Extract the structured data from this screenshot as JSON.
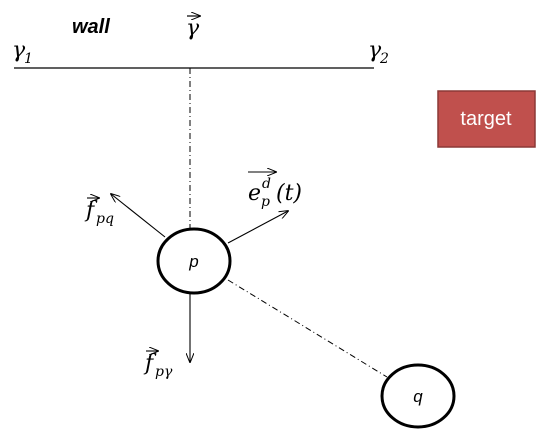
{
  "wall": {
    "label": "wall",
    "gamma": "γ",
    "gamma1_base": "γ",
    "gamma1_sub": "1",
    "gamma2_base": "γ",
    "gamma2_sub": "2"
  },
  "target": {
    "label": "target",
    "fill": "#c0504d",
    "border": "#8c3836"
  },
  "nodes": {
    "p": "p",
    "q": "q"
  },
  "vectors": {
    "f_pq_base": "f",
    "f_pq_sub": "pq",
    "f_pgamma_base": "f",
    "f_pgamma_sub": "pγ",
    "e_base": "e",
    "e_sub": "p",
    "e_sup": "d",
    "e_arg": "(t)"
  }
}
